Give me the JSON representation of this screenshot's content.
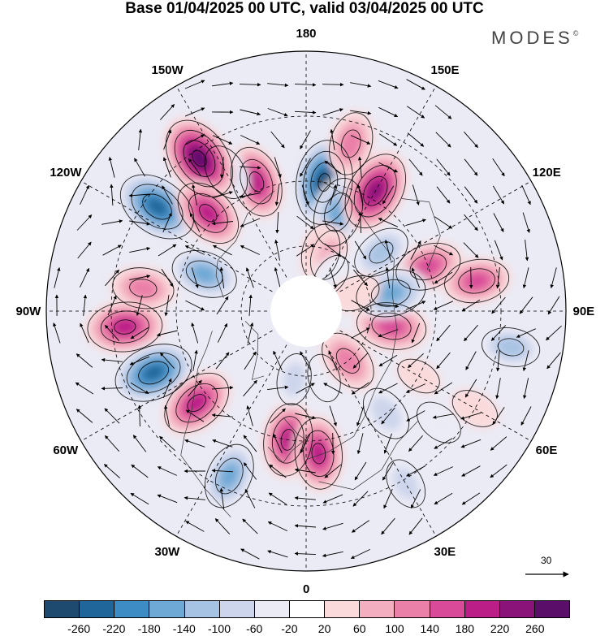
{
  "title": "Base 01/04/2025 00 UTC, valid 03/04/2025 00 UTC",
  "brand": "MODES",
  "brand_mark": "©",
  "longitude_labels": [
    "180",
    "150E",
    "120E",
    "90E",
    "60E",
    "30E",
    "0",
    "30W",
    "60W",
    "90W",
    "120W",
    "150W"
  ],
  "reference_vector_label": "30",
  "colorbar": {
    "colors": [
      "#1d4a6e",
      "#21669a",
      "#3d8cc4",
      "#6ea9d6",
      "#a7c3e3",
      "#cdd5ec",
      "#ebebf5",
      "#ffffff",
      "#fadadb",
      "#f3afbf",
      "#ea7fa7",
      "#d94b99",
      "#bb1f87",
      "#8a137a",
      "#5a0e6a"
    ],
    "ticks": [
      "-260",
      "-220",
      "-180",
      "-140",
      "-100",
      "-60",
      "-20",
      "20",
      "60",
      "100",
      "140",
      "180",
      "220",
      "260"
    ]
  },
  "anomaly_centers": [
    {
      "lon": 172,
      "colat": 30,
      "value": -260
    },
    {
      "lon": 162,
      "colat": 24,
      "value": -170
    },
    {
      "lon": 150,
      "colat": 32,
      "value": 230
    },
    {
      "lon": 166,
      "colat": 14,
      "value": 90
    },
    {
      "lon": 110,
      "colat": 30,
      "value": 150
    },
    {
      "lon": 128,
      "colat": 22,
      "value": -110
    },
    {
      "lon": 158,
      "colat": 14,
      "value": 60
    },
    {
      "lon": 165,
      "colat": 40,
      "value": 130
    },
    {
      "lon": 145,
      "colat": 10,
      "value": -20
    },
    {
      "lon": -159,
      "colat": 32,
      "value": 180
    },
    {
      "lon": -150,
      "colat": 37,
      "value": -90
    },
    {
      "lon": -145,
      "colat": 43,
      "value": 260
    },
    {
      "lon": -125,
      "colat": 42,
      "value": -240
    },
    {
      "lon": -135,
      "colat": 32,
      "value": 180
    },
    {
      "lon": -110,
      "colat": 25,
      "value": -150
    },
    {
      "lon": -85,
      "colat": 42,
      "value": 200
    },
    {
      "lon": -98,
      "colat": 38,
      "value": 120
    },
    {
      "lon": -68,
      "colat": 38,
      "value": -230
    },
    {
      "lon": -50,
      "colat": 33,
      "value": 190
    },
    {
      "lon": -25,
      "colat": 42,
      "value": -150
    },
    {
      "lon": -8,
      "colat": 30,
      "value": 190
    },
    {
      "lon": 5,
      "colat": 33,
      "value": 180
    },
    {
      "lon": -10,
      "colat": 16,
      "value": -60
    },
    {
      "lon": 15,
      "colat": 16,
      "value": -40
    },
    {
      "lon": 38,
      "colat": 30,
      "value": -90
    },
    {
      "lon": 40,
      "colat": 15,
      "value": 130
    },
    {
      "lon": 80,
      "colat": 20,
      "value": 170
    },
    {
      "lon": 80,
      "colat": 48,
      "value": -100
    },
    {
      "lon": 102,
      "colat": 20,
      "value": -170
    },
    {
      "lon": 60,
      "colat": 30,
      "value": 20
    },
    {
      "lon": 30,
      "colat": 46,
      "value": -60
    },
    {
      "lon": 60,
      "colat": 45,
      "value": 40
    },
    {
      "lon": 100,
      "colat": 40,
      "value": 140
    },
    {
      "lon": 50,
      "colat": 40,
      "value": -50
    },
    {
      "lon": 110,
      "colat": 12,
      "value": 50
    }
  ]
}
